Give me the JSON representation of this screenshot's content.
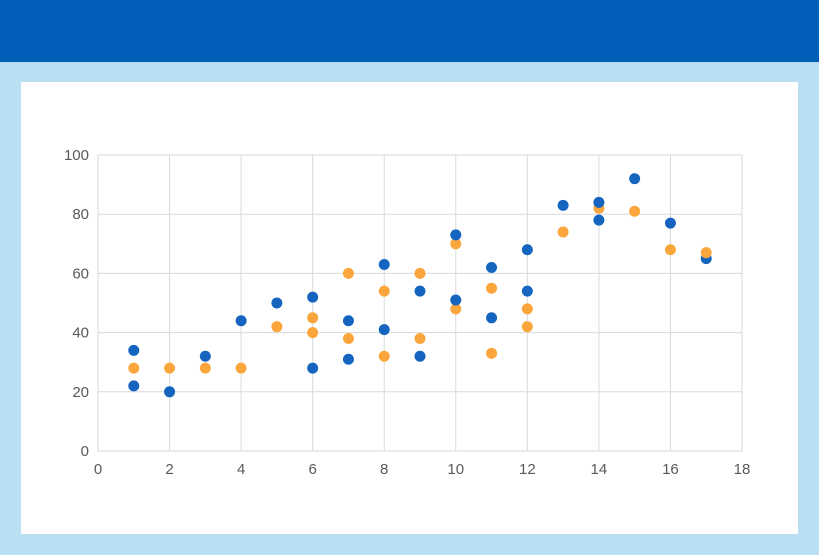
{
  "page": {
    "background_color": "#B9DFF3",
    "top_bar_color": "#005EB8",
    "panel_color": "#FFFFFF"
  },
  "chart_data": {
    "type": "scatter",
    "title": "",
    "xlabel": "",
    "ylabel": "",
    "xlim": [
      0,
      18
    ],
    "ylim": [
      0,
      100
    ],
    "x_ticks": [
      0,
      2,
      4,
      6,
      8,
      10,
      12,
      14,
      16,
      18
    ],
    "y_ticks": [
      0,
      20,
      40,
      60,
      80,
      100
    ],
    "grid": true,
    "grid_color": "#D9D9D9",
    "tick_label_color": "#595959",
    "legend_position": "none",
    "marker_radius": 5.5,
    "series": [
      {
        "name": "series-blue",
        "color": "#1565C0",
        "points": [
          [
            1,
            34
          ],
          [
            1,
            22
          ],
          [
            2,
            20
          ],
          [
            3,
            32
          ],
          [
            4,
            44
          ],
          [
            5,
            50
          ],
          [
            6,
            52
          ],
          [
            6,
            28
          ],
          [
            7,
            44
          ],
          [
            7,
            31
          ],
          [
            8,
            63
          ],
          [
            8,
            41
          ],
          [
            9,
            54
          ],
          [
            9,
            32
          ],
          [
            10,
            73
          ],
          [
            10,
            51
          ],
          [
            11,
            62
          ],
          [
            11,
            45
          ],
          [
            12,
            68
          ],
          [
            12,
            54
          ],
          [
            13,
            83
          ],
          [
            14,
            84
          ],
          [
            14,
            78
          ],
          [
            15,
            92
          ],
          [
            16,
            77
          ],
          [
            17,
            65
          ]
        ]
      },
      {
        "name": "series-orange",
        "color": "#FAA63C",
        "points": [
          [
            1,
            28
          ],
          [
            2,
            28
          ],
          [
            3,
            28
          ],
          [
            4,
            28
          ],
          [
            5,
            42
          ],
          [
            6,
            45
          ],
          [
            6,
            40
          ],
          [
            7,
            60
          ],
          [
            7,
            38
          ],
          [
            8,
            54
          ],
          [
            8,
            32
          ],
          [
            9,
            60
          ],
          [
            9,
            38
          ],
          [
            10,
            70
          ],
          [
            10,
            48
          ],
          [
            11,
            55
          ],
          [
            11,
            33
          ],
          [
            12,
            48
          ],
          [
            12,
            42
          ],
          [
            13,
            74
          ],
          [
            14,
            82
          ],
          [
            15,
            81
          ],
          [
            16,
            68
          ],
          [
            17,
            67
          ]
        ]
      }
    ]
  }
}
